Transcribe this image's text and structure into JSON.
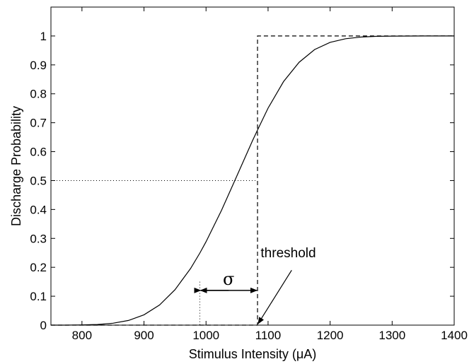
{
  "chart_data": {
    "type": "line",
    "title": "",
    "xlabel": "Stimulus Intensity (μA)",
    "ylabel": "Discharge Probability",
    "xlim": [
      750,
      1400
    ],
    "ylim": [
      0,
      1.1
    ],
    "xticks": [
      800,
      900,
      1000,
      1100,
      1200,
      1300,
      1400
    ],
    "yticks": [
      0,
      0.1,
      0.2,
      0.3,
      0.4,
      0.5,
      0.6,
      0.7,
      0.8,
      0.9,
      1
    ],
    "grid": false,
    "legend": "none",
    "series": [
      {
        "style": "solid",
        "description": "cumulative normal discharge probability",
        "x": [
          750,
          775,
          800,
          825,
          850,
          875,
          900,
          925,
          950,
          975,
          990,
          1000,
          1025,
          1050,
          1075,
          1083,
          1100,
          1125,
          1150,
          1175,
          1200,
          1225,
          1250,
          1275,
          1300,
          1325,
          1350,
          1375,
          1400
        ],
        "y": [
          0.0,
          0.0001,
          0.0007,
          0.0023,
          0.0066,
          0.0162,
          0.0357,
          0.0697,
          0.1226,
          0.1956,
          0.2494,
          0.2882,
          0.3975,
          0.5174,
          0.6383,
          0.6747,
          0.7504,
          0.8424,
          0.9092,
          0.953,
          0.9781,
          0.9906,
          0.9964,
          0.9987,
          0.9996,
          0.9999,
          1.0,
          1.0,
          1.0
        ]
      },
      {
        "style": "dashed",
        "description": "step at threshold",
        "x": [
          750,
          1083,
          1083,
          1400
        ],
        "y": [
          0,
          0,
          1,
          1
        ]
      }
    ],
    "annotations": {
      "threshold_label": "threshold",
      "sigma_label": "σ",
      "threshold_x": 1083,
      "sigma_left_x": 990,
      "half_level": 0.5,
      "sigma_arrow_y": 0.12,
      "dotted_sigma_top_y": 0.15,
      "threshold_text_x": 1088,
      "threshold_text_y": 0.235,
      "threshold_arrow_from": [
        1138,
        0.19
      ],
      "threshold_arrow_to": [
        1084,
        0.005
      ]
    }
  }
}
